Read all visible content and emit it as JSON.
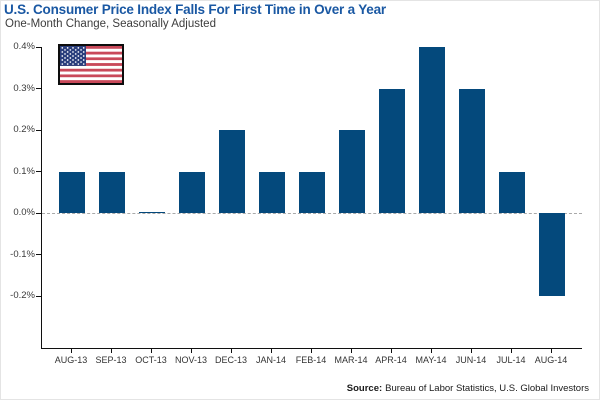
{
  "header": {
    "title": "U.S. Consumer Price Index Falls For First Time in Over a Year",
    "subtitle": "One-Month Change, Seasonally Adjusted"
  },
  "source": {
    "label": "Source:",
    "text": "Bureau of Labor Statistics, U.S. Global Investors"
  },
  "colors": {
    "bar": "#04497C",
    "title_blue": "#1A58A3",
    "zero_line": "#A9A9A9",
    "axis": "#101010",
    "flag_red": "#C9495A",
    "flag_blue": "#2A3E7C",
    "flag_white": "#FFFFFF"
  },
  "icons": {
    "flag": "us-flag-icon"
  },
  "chart_data": {
    "type": "bar",
    "title": "U.S. Consumer Price Index Falls For First Time in Over a Year",
    "subtitle": "One-Month Change, Seasonally Adjusted",
    "categories": [
      "AUG-13",
      "SEP-13",
      "OCT-13",
      "NOV-13",
      "DEC-13",
      "JAN-14",
      "FEB-14",
      "MAR-14",
      "APR-14",
      "MAY-14",
      "JUN-14",
      "JUL-14",
      "AUG-14"
    ],
    "values": [
      0.1,
      0.1,
      0.0,
      0.1,
      0.2,
      0.1,
      0.1,
      0.2,
      0.3,
      0.4,
      0.3,
      0.1,
      -0.2
    ],
    "unit": "%",
    "xlabel": "",
    "ylabel": "",
    "ylim": [
      -0.325,
      0.4
    ],
    "y_ticks": [
      0.4,
      0.3,
      0.2,
      0.1,
      0.0,
      -0.1,
      -0.2
    ],
    "y_tick_labels": [
      "0.4%",
      "0.3%",
      "0.2%",
      "0.1%",
      "0.0%",
      "-0.1%",
      "-0.2%"
    ],
    "zero_line_style": "dashed",
    "grid": false,
    "legend": "none",
    "bar_color": "#04497C"
  }
}
